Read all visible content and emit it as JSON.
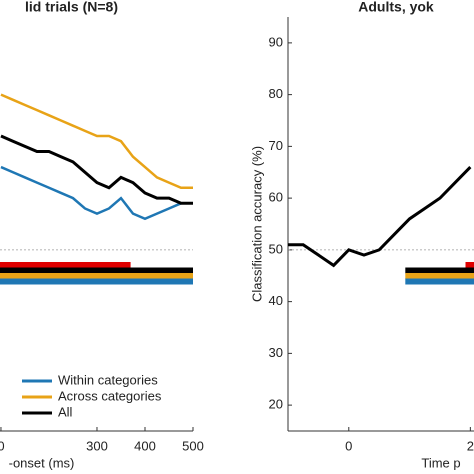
{
  "chart_data": [
    {
      "type": "line",
      "title": "lid trials (N=8)",
      "xlabel": "-onset (ms)",
      "xlim": [
        98,
        500
      ],
      "ylim": [
        15,
        95
      ],
      "xticks": [
        {
          "value": 100,
          "label": "0"
        },
        300,
        400,
        500
      ],
      "chance": 50,
      "legend": "lower center",
      "x": [
        100,
        125,
        150,
        175,
        200,
        225,
        250,
        275,
        300,
        325,
        350,
        375,
        400,
        425,
        450,
        475,
        500
      ],
      "series": [
        {
          "name": "Within categories",
          "color": "#1f77b4",
          "values": [
            66,
            65,
            64,
            63,
            62,
            61,
            60,
            58,
            57,
            58,
            60,
            57,
            56,
            57,
            58,
            59,
            59
          ]
        },
        {
          "name": "Across categories",
          "color": "#e8a317",
          "values": [
            80,
            79,
            78,
            77,
            76,
            75,
            74,
            73,
            72,
            72,
            71,
            68,
            66,
            64,
            63,
            62,
            62
          ]
        },
        {
          "name": "All",
          "color": "#000000",
          "values": [
            72,
            71,
            70,
            69,
            69,
            68,
            67,
            65,
            63,
            62,
            64,
            63,
            61,
            60,
            60,
            59,
            59
          ]
        }
      ],
      "significance": [
        {
          "color": "#e00000",
          "start": 98,
          "end": 370
        },
        {
          "color": "#000000",
          "start": 98,
          "end": 500
        },
        {
          "color": "#e8a317",
          "start": 98,
          "end": 500
        },
        {
          "color": "#1f77b4",
          "start": 98,
          "end": 500
        }
      ]
    },
    {
      "type": "line",
      "title": "Adults, yok",
      "xlabel": "Time p",
      "ylabel": "Classification accuracy (%)",
      "xlim": [
        -100,
        206
      ],
      "ylim": [
        15,
        95
      ],
      "xticks": [
        0,
        {
          "value": 200,
          "label": "2"
        }
      ],
      "yticks": [
        20,
        30,
        40,
        50,
        60,
        70,
        80,
        90
      ],
      "chance": 50,
      "x": [
        -100,
        -75,
        -50,
        -25,
        0,
        25,
        50,
        75,
        100,
        125,
        150,
        175,
        200
      ],
      "series": [
        {
          "name": "All",
          "color": "#000000",
          "values": [
            51,
            51,
            49,
            47,
            50,
            49,
            50,
            53,
            56,
            58,
            60,
            63,
            66
          ]
        }
      ],
      "significance": [
        {
          "color": "#e00000",
          "start": 192,
          "end": 206
        },
        {
          "color": "#000000",
          "start": 93,
          "end": 206
        },
        {
          "color": "#e8a317",
          "start": 93,
          "end": 206
        },
        {
          "color": "#1f77b4",
          "start": 93,
          "end": 206
        }
      ]
    }
  ]
}
